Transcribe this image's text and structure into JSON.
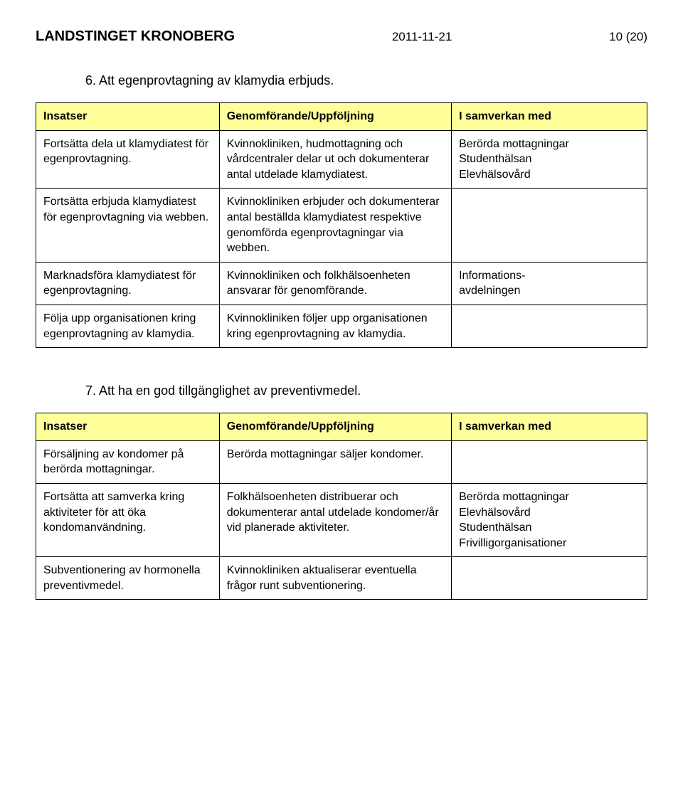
{
  "header": {
    "org": "LANDSTINGET KRONOBERG",
    "date": "2011-11-21",
    "page": "10 (20)"
  },
  "section6": {
    "title": "6. Att egenprovtagning av klamydia erbjuds.",
    "columns": [
      "Insatser",
      "Genomförande/Uppföljning",
      "I samverkan med"
    ],
    "rows": [
      {
        "c1": "Fortsätta dela ut klamydiatest för egenprovtagning.",
        "c2": "Kvinnokliniken, hudmottagning och vårdcentraler delar ut och dokumenterar antal utdelade klamydiatest.",
        "c3": "Berörda mottagningar\nStudenthälsan\nElevhälsovård"
      },
      {
        "c1": "Fortsätta erbjuda klamydiatest för egenprovtagning via webben.",
        "c2": "Kvinnokliniken erbjuder och dokumenterar antal beställda klamydiatest respektive genomförda egenprovtagningar via webben.",
        "c3": ""
      },
      {
        "c1": "Marknadsföra klamydiatest för egenprovtagning.",
        "c2": "Kvinnokliniken och folkhälsoenheten ansvarar för genomförande.",
        "c3": "Informations-\navdelningen"
      },
      {
        "c1": "Följa upp organisationen kring egenprovtagning av klamydia.",
        "c2": "Kvinnokliniken följer upp organisationen kring egenprovtagning av klamydia.",
        "c3": ""
      }
    ]
  },
  "section7": {
    "title": "7. Att ha en god tillgänglighet av preventivmedel.",
    "columns": [
      "Insatser",
      "Genomförande/Uppföljning",
      "I samverkan med"
    ],
    "rows": [
      {
        "c1": "Försäljning av kondomer på berörda mottagningar.",
        "c2": "Berörda mottagningar säljer kondomer.",
        "c3": ""
      },
      {
        "c1": "Fortsätta att samverka kring aktiviteter för att öka kondomanvändning.",
        "c2": "Folkhälsoenheten distribuerar och dokumenterar antal utdelade kondomer/år vid planerade aktiviteter.",
        "c3": "Berörda mottagningar\nElevhälsovård\nStudenthälsan\nFrivilligorganisationer"
      },
      {
        "c1": "Subventionering av hormonella preventivmedel.",
        "c2": "Kvinnokliniken aktualiserar eventuella frågor runt subventionering.",
        "c3": ""
      }
    ]
  }
}
